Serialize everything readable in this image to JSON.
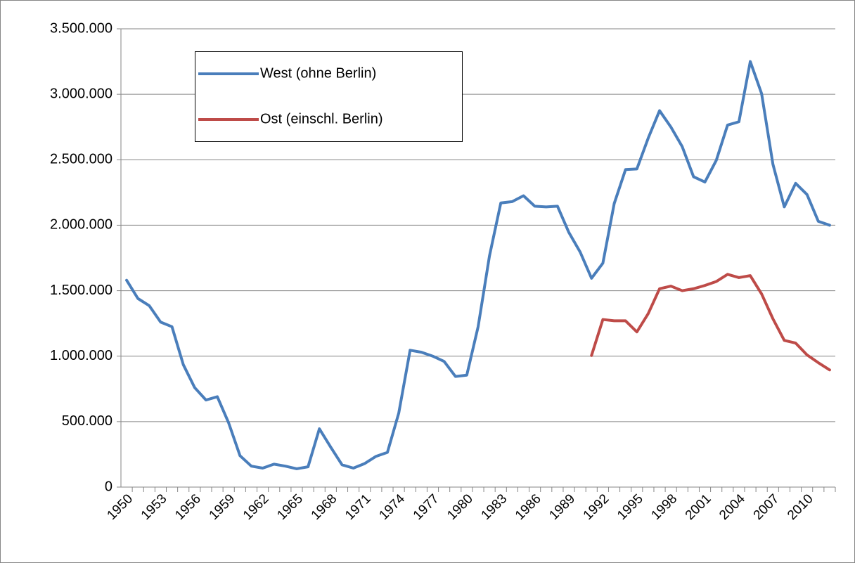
{
  "chart_data": {
    "type": "line",
    "categories": [
      "1950",
      null,
      null,
      "1953",
      null,
      null,
      "1956",
      null,
      null,
      "1959",
      null,
      null,
      "1962",
      null,
      null,
      "1965",
      null,
      null,
      "1968",
      null,
      null,
      "1971",
      null,
      null,
      "1974",
      null,
      null,
      "1977",
      null,
      null,
      "1980",
      null,
      null,
      "1983",
      null,
      null,
      "1986",
      null,
      null,
      "1989",
      null,
      null,
      "1992",
      null,
      null,
      "1995",
      null,
      null,
      "1998",
      null,
      null,
      "2001",
      null,
      null,
      "2004",
      null,
      null,
      "2007",
      null,
      null,
      "2010",
      null,
      null
    ],
    "series": [
      {
        "name": "West (ohne Berlin)",
        "color": "#4a7ebb",
        "values": [
          1580000,
          1440000,
          1385000,
          1260000,
          1225000,
          935000,
          760000,
          665000,
          690000,
          490000,
          240000,
          160000,
          145000,
          175000,
          160000,
          140000,
          155000,
          445000,
          305000,
          170000,
          145000,
          180000,
          235000,
          265000,
          565000,
          1045000,
          1030000,
          1000000,
          960000,
          845000,
          855000,
          1225000,
          1765000,
          2170000,
          2180000,
          2225000,
          2145000,
          2140000,
          2145000,
          1945000,
          1795000,
          1595000,
          1710000,
          2165000,
          2425000,
          2430000,
          2665000,
          2875000,
          2750000,
          2600000,
          2370000,
          2330000,
          2495000,
          2765000,
          2790000,
          3250000,
          3005000,
          2465000,
          2140000,
          2320000,
          2235000,
          2030000,
          2000000
        ]
      },
      {
        "name": "Ost (einschl. Berlin)",
        "color": "#be4b48",
        "values": [
          null,
          null,
          null,
          null,
          null,
          null,
          null,
          null,
          null,
          null,
          null,
          null,
          null,
          null,
          null,
          null,
          null,
          null,
          null,
          null,
          null,
          null,
          null,
          null,
          null,
          null,
          null,
          null,
          null,
          null,
          null,
          null,
          null,
          null,
          null,
          null,
          null,
          null,
          null,
          null,
          null,
          1005000,
          1280000,
          1270000,
          1270000,
          1185000,
          1325000,
          1515000,
          1535000,
          1500000,
          1515000,
          1540000,
          1570000,
          1625000,
          1600000,
          1615000,
          1475000,
          1285000,
          1120000,
          1100000,
          1010000,
          950000,
          895000
        ]
      }
    ],
    "ylim": [
      0,
      3500000
    ],
    "yticks": [
      0,
      {
        "value": 500000,
        "label": "500.000"
      },
      {
        "value": 1000000,
        "label": "1.000.000"
      },
      {
        "value": 1500000,
        "label": "1.500.000"
      },
      {
        "value": 2000000,
        "label": "2.000.000"
      },
      {
        "value": 2500000,
        "label": "2.500.000"
      },
      {
        "value": 3000000,
        "label": "3.000.000"
      },
      {
        "value": 3500000,
        "label": "3.500.000"
      }
    ],
    "grid": true
  }
}
